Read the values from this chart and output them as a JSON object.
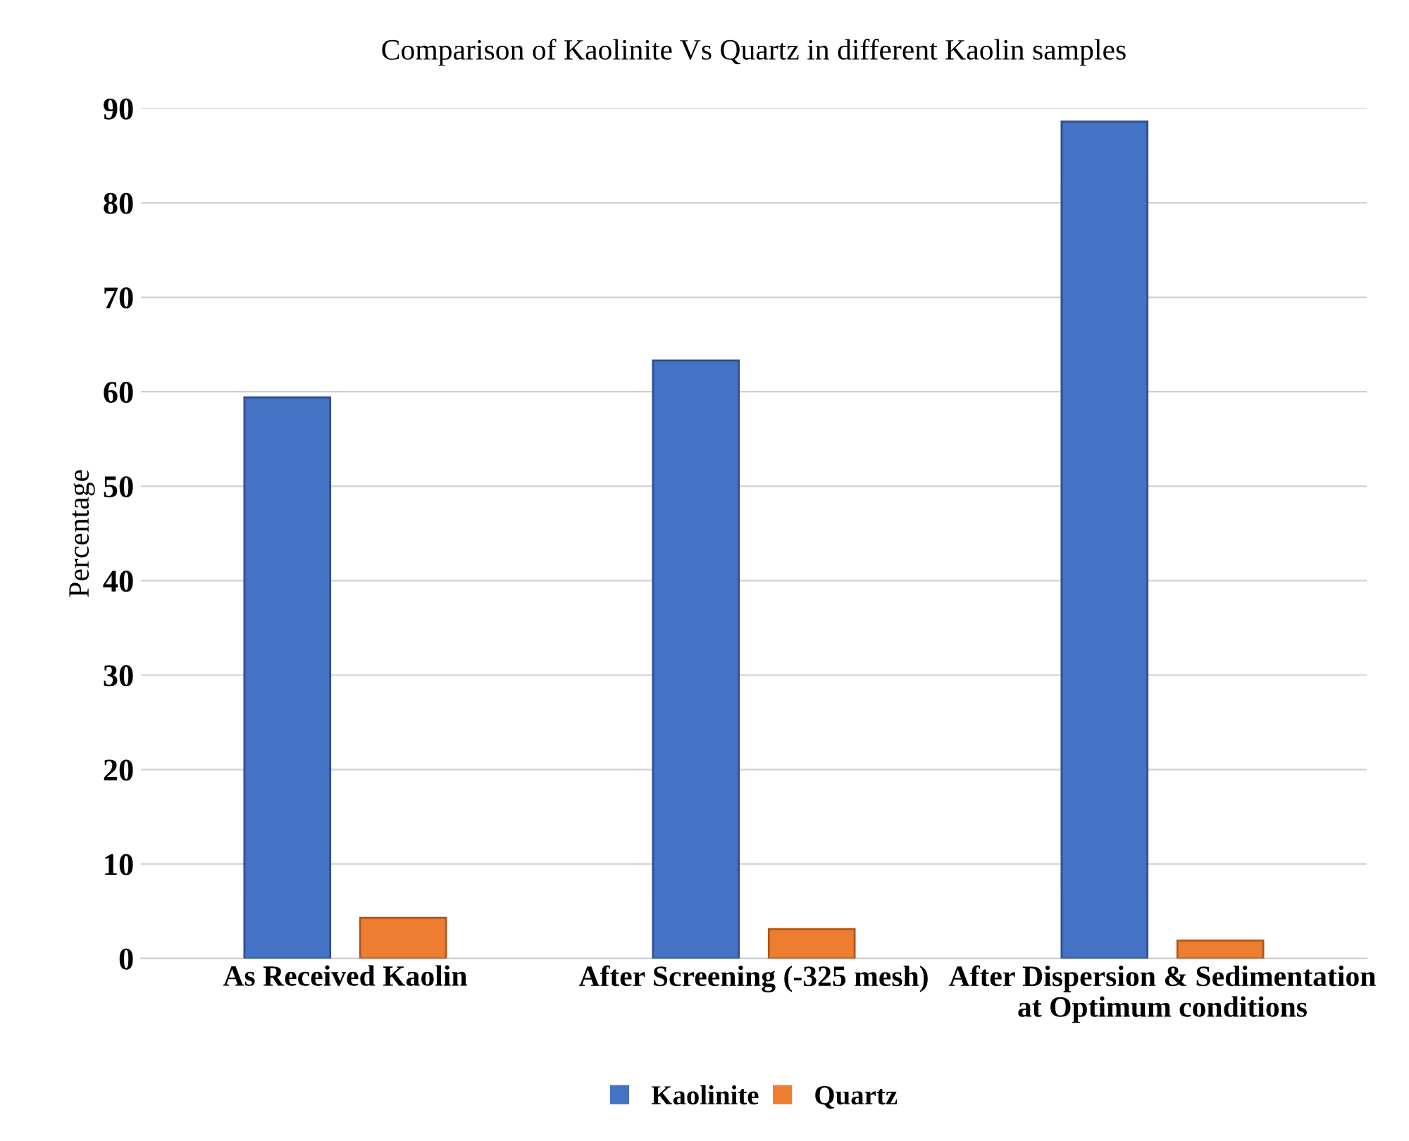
{
  "chart_data": {
    "type": "bar",
    "title": "Comparison of Kaolinite Vs Quartz in different Kaolin samples",
    "ylabel": "Percentage",
    "categories": [
      "As Received Kaolin",
      "After Screening (-325 mesh)",
      "After Dispersion & Sedimentation\nat Optimum conditions"
    ],
    "series": [
      {
        "name": "Kaolinite",
        "color": "#4472c4",
        "values": [
          59.4,
          63.3,
          88.6
        ]
      },
      {
        "name": "Quartz",
        "color": "#ed7d31",
        "values": [
          4.3,
          3.1,
          1.9
        ]
      }
    ],
    "ylim": [
      0,
      90
    ],
    "yticks": [
      0,
      10,
      20,
      30,
      40,
      50,
      60,
      70,
      80,
      90
    ],
    "grid": "y",
    "legend": "bottom"
  }
}
